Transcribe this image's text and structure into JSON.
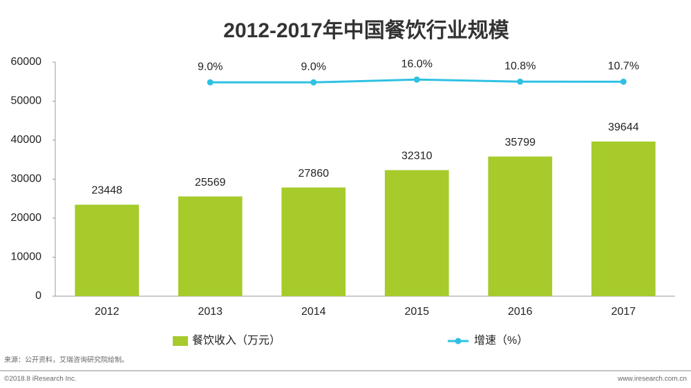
{
  "chart_data": {
    "type": "bar",
    "title": "2012-2017年中国餐饮行业规模",
    "categories": [
      "2012",
      "2013",
      "2014",
      "2015",
      "2016",
      "2017"
    ],
    "series": [
      {
        "name": "餐饮收入（万元）",
        "type": "bar",
        "color": "#a6cb2b",
        "values": [
          23448,
          25569,
          27860,
          32310,
          35799,
          39644
        ]
      },
      {
        "name": "增速（%）",
        "type": "line",
        "axis": "y2",
        "color": "#2ec1e3",
        "values": [
          null,
          9.0,
          9.0,
          16.0,
          10.8,
          10.7
        ],
        "value_labels": [
          null,
          "9.0%",
          "9.0%",
          "16.0%",
          "10.8%",
          "10.7%"
        ]
      }
    ],
    "ylim": [
      0,
      60000
    ],
    "yticks": [
      0,
      10000,
      20000,
      30000,
      40000,
      50000,
      60000
    ],
    "y2lim": [
      -530,
      60
    ],
    "legend": "bottom",
    "source": "来源：公开资料，艾瑞咨询研究院绘制。",
    "copyright": "©2018.8 iResearch Inc.",
    "website": "www.iresearch.com.cn"
  }
}
